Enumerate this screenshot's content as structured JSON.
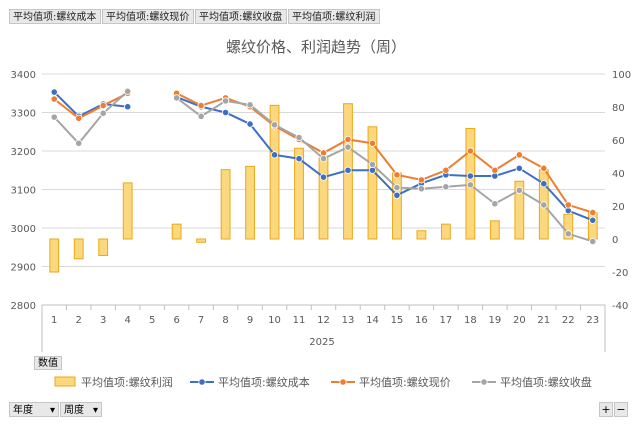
{
  "field_buttons": [
    "平均值项:螺纹成本",
    "平均值项:螺纹现价",
    "平均值项:螺纹收盘",
    "平均值项:螺纹利润"
  ],
  "values_button": "数值",
  "axis_buttons": {
    "year": "年度",
    "week": "周度"
  },
  "zoom": {
    "plus": "+",
    "minus": "−"
  },
  "colors": {
    "profit_fill": "#fbd77e",
    "profit_border": "#eaa91a",
    "cost": "#3e6fc3",
    "price": "#ed7d31",
    "close": "#a5a5a5",
    "grid": "#d9d9d9",
    "text": "#595959"
  },
  "chart_data": {
    "type": "combo",
    "title": "螺纹价格、利润趋势（周）",
    "categories": [
      "1",
      "2",
      "3",
      "4",
      "5",
      "6",
      "7",
      "8",
      "9",
      "10",
      "11",
      "12",
      "13",
      "14",
      "15",
      "16",
      "17",
      "18",
      "19",
      "20",
      "21",
      "22",
      "23"
    ],
    "xgroup": "2025",
    "y_left": {
      "range": [
        2800,
        3400
      ],
      "ticks": [
        2800,
        2900,
        3000,
        3100,
        3200,
        3300,
        3400
      ]
    },
    "y_right": {
      "range": [
        -40,
        100
      ],
      "ticks": [
        -40,
        -20,
        0,
        20,
        40,
        60,
        80,
        100
      ]
    },
    "grid": true,
    "legend_position": "bottom",
    "series": [
      {
        "name": "平均值项:螺纹利润",
        "kind": "bar",
        "axis": "right",
        "values": [
          -20,
          -12,
          -10,
          34,
          null,
          9,
          -2,
          42,
          44,
          81,
          55,
          49,
          82,
          68,
          40,
          5,
          9,
          67,
          11,
          35,
          42,
          15,
          16
        ]
      },
      {
        "name": "平均值项:螺纹成本",
        "kind": "line",
        "axis": "left",
        "values": [
          3353,
          3290,
          3322,
          3315,
          null,
          3340,
          3315,
          3300,
          3270,
          3190,
          3180,
          3132,
          3150,
          3150,
          3085,
          3116,
          3138,
          3135,
          3135,
          3155,
          3115,
          3045,
          3020
        ]
      },
      {
        "name": "平均值项:螺纹现价",
        "kind": "line",
        "axis": "left",
        "values": [
          3335,
          3285,
          3318,
          3350,
          null,
          3350,
          3318,
          3338,
          3315,
          3265,
          3230,
          3195,
          3230,
          3220,
          3138,
          3125,
          3150,
          3200,
          3150,
          3190,
          3155,
          3060,
          3040
        ]
      },
      {
        "name": "平均值项:螺纹收盘",
        "kind": "line",
        "axis": "left",
        "values": [
          3288,
          3220,
          3298,
          3355,
          null,
          3338,
          3290,
          3330,
          3320,
          3268,
          3235,
          3180,
          3210,
          3165,
          3105,
          3102,
          3107,
          3112,
          3063,
          3098,
          3060,
          2985,
          2965
        ]
      }
    ]
  }
}
